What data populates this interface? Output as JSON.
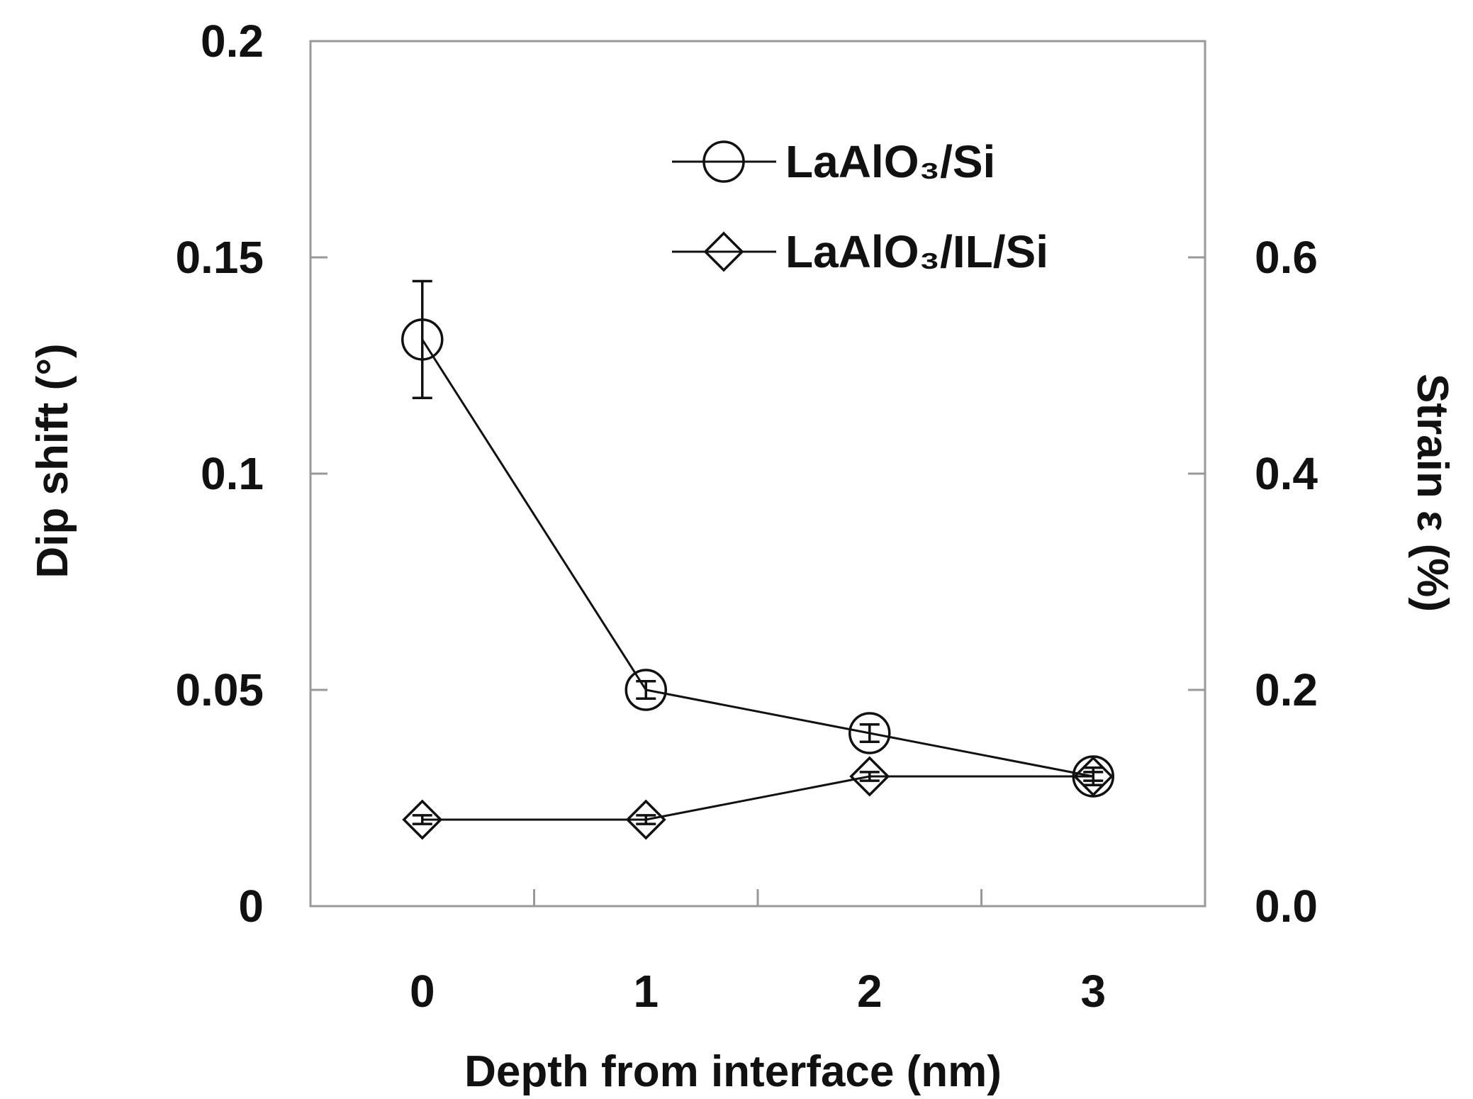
{
  "chart_data": {
    "type": "line",
    "title": "",
    "xlabel": "Depth from interface (nm)",
    "ylabel": "Dip shift (°)",
    "y2label": "Strain ε  (%)",
    "categories": [
      "0",
      "1",
      "2",
      "3"
    ],
    "x": [
      0,
      1,
      2,
      3
    ],
    "xlim": [
      -0.5,
      3.5
    ],
    "ylim": [
      0,
      0.2
    ],
    "y2lim": [
      0.0,
      0.8
    ],
    "yticks": [
      "0",
      "0.05",
      "0.1",
      "0.15",
      "0.2"
    ],
    "y2ticks": [
      "0.0",
      "0.2",
      "0.4",
      "0.6"
    ],
    "grid": false,
    "legend_position": "top-right",
    "series": [
      {
        "name": "LaAlO₃/Si",
        "marker": "circle",
        "values": [
          0.131,
          0.05,
          0.04,
          0.03
        ],
        "error": [
          0.0135,
          0.002,
          0.002,
          0.002
        ]
      },
      {
        "name": "LaAlO₃/IL/Si",
        "marker": "diamond",
        "values": [
          0.02,
          0.02,
          0.03,
          0.03
        ],
        "error": [
          0.001,
          0.001,
          0.001,
          0.001
        ]
      }
    ],
    "colors": {
      "line": "#111111",
      "frame": "#999999",
      "background": "#ffffff"
    }
  }
}
